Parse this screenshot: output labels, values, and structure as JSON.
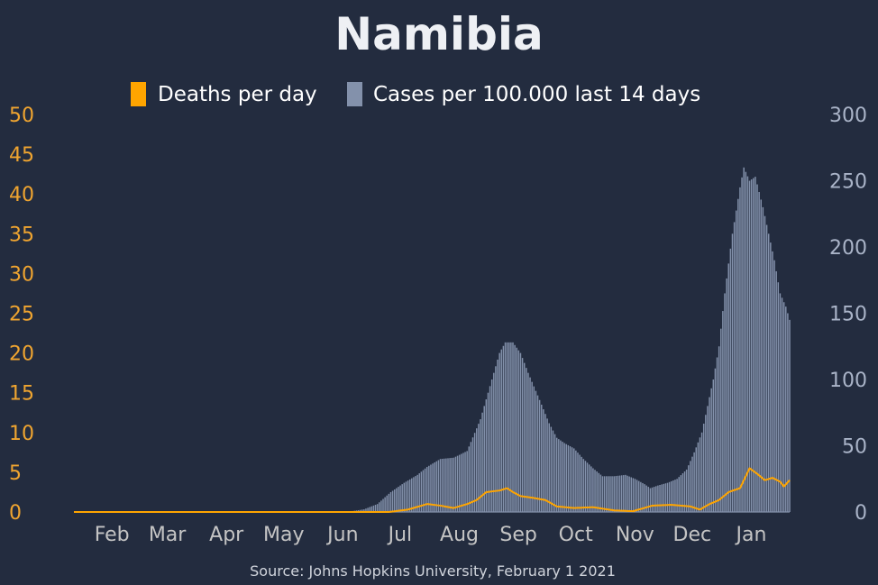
{
  "chart_data": {
    "type": "bar+line",
    "title": "Namibia",
    "source": "Source: Johns Hopkins University, February 1 2021",
    "legend": [
      {
        "label": "Deaths per day",
        "color": "#ffa500"
      },
      {
        "label": "Cases per 100.000 last 14 days",
        "color": "#8391ab"
      }
    ],
    "colors": {
      "background": "#232c3f",
      "deaths": "#ffa500",
      "cases": "#8391ab",
      "left_axis": "#f0a530",
      "right_axis": "#aab4c8",
      "x_axis": "#c4c4c4",
      "title": "#eef0f4"
    },
    "x_start_date": "2020-01-22",
    "x_end_date": "2021-01-31",
    "x_ticks": [
      "Feb",
      "Mar",
      "Apr",
      "May",
      "Jun",
      "Jul",
      "Aug",
      "Sep",
      "Oct",
      "Nov",
      "Dec",
      "Jan"
    ],
    "x_tick_dates": [
      "2020-02-01",
      "2020-03-01",
      "2020-04-01",
      "2020-05-01",
      "2020-06-01",
      "2020-07-01",
      "2020-08-01",
      "2020-09-01",
      "2020-10-01",
      "2020-11-01",
      "2020-12-01",
      "2021-01-01"
    ],
    "left_axis": {
      "label": "Deaths per day",
      "ylim": [
        0,
        50
      ],
      "ticks": [
        "0",
        "5",
        "10",
        "15",
        "20",
        "25",
        "30",
        "35",
        "40",
        "45",
        "50"
      ]
    },
    "right_axis": {
      "label": "Cases per 100.000 last 14 days",
      "ylim": [
        0,
        300
      ],
      "ticks": [
        "0",
        "50",
        "100",
        "150",
        "200",
        "250",
        "300"
      ]
    },
    "cases_keypoints": [
      [
        "2020-01-22",
        0
      ],
      [
        "2020-06-08",
        0
      ],
      [
        "2020-06-15",
        0.5
      ],
      [
        "2020-06-22",
        2
      ],
      [
        "2020-06-29",
        6
      ],
      [
        "2020-07-06",
        15
      ],
      [
        "2020-07-13",
        22
      ],
      [
        "2020-07-20",
        28
      ],
      [
        "2020-07-25",
        34
      ],
      [
        "2020-08-01",
        40
      ],
      [
        "2020-08-08",
        41
      ],
      [
        "2020-08-15",
        46
      ],
      [
        "2020-08-22",
        70
      ],
      [
        "2020-08-27",
        95
      ],
      [
        "2020-09-01",
        120
      ],
      [
        "2020-09-04",
        128
      ],
      [
        "2020-09-08",
        128
      ],
      [
        "2020-09-12",
        120
      ],
      [
        "2020-09-16",
        105
      ],
      [
        "2020-09-21",
        88
      ],
      [
        "2020-09-27",
        67
      ],
      [
        "2020-10-01",
        56
      ],
      [
        "2020-10-05",
        52
      ],
      [
        "2020-10-10",
        48
      ],
      [
        "2020-10-15",
        40
      ],
      [
        "2020-10-20",
        33
      ],
      [
        "2020-10-25",
        27
      ],
      [
        "2020-10-31",
        27
      ],
      [
        "2020-11-06",
        28
      ],
      [
        "2020-11-11",
        25
      ],
      [
        "2020-11-16",
        21
      ],
      [
        "2020-11-19",
        18
      ],
      [
        "2020-11-23",
        20
      ],
      [
        "2020-11-28",
        22
      ],
      [
        "2020-12-03",
        25
      ],
      [
        "2020-12-08",
        32
      ],
      [
        "2020-12-12",
        45
      ],
      [
        "2020-12-16",
        60
      ],
      [
        "2020-12-19",
        80
      ],
      [
        "2020-12-22",
        100
      ],
      [
        "2020-12-25",
        125
      ],
      [
        "2020-12-28",
        165
      ],
      [
        "2021-01-01",
        210
      ],
      [
        "2021-01-05",
        245
      ],
      [
        "2021-01-07",
        260
      ],
      [
        "2021-01-10",
        250
      ],
      [
        "2021-01-13",
        253
      ],
      [
        "2021-01-17",
        230
      ],
      [
        "2021-01-20",
        210
      ],
      [
        "2021-01-23",
        190
      ],
      [
        "2021-01-26",
        165
      ],
      [
        "2021-01-29",
        155
      ],
      [
        "2021-01-31",
        145
      ]
    ],
    "deaths_keypoints": [
      [
        "2020-01-22",
        0
      ],
      [
        "2020-07-05",
        0
      ],
      [
        "2020-07-15",
        0.3
      ],
      [
        "2020-07-25",
        1
      ],
      [
        "2020-08-01",
        0.8
      ],
      [
        "2020-08-08",
        0.5
      ],
      [
        "2020-08-15",
        1
      ],
      [
        "2020-08-20",
        1.5
      ],
      [
        "2020-08-25",
        2.5
      ],
      [
        "2020-09-01",
        2.7
      ],
      [
        "2020-09-05",
        3
      ],
      [
        "2020-09-08",
        2.5
      ],
      [
        "2020-09-12",
        2
      ],
      [
        "2020-09-18",
        1.8
      ],
      [
        "2020-09-25",
        1.5
      ],
      [
        "2020-10-01",
        0.7
      ],
      [
        "2020-10-10",
        0.5
      ],
      [
        "2020-10-20",
        0.6
      ],
      [
        "2020-10-31",
        0.2
      ],
      [
        "2020-11-10",
        0.1
      ],
      [
        "2020-11-20",
        0.8
      ],
      [
        "2020-11-30",
        0.9
      ],
      [
        "2020-12-10",
        0.7
      ],
      [
        "2020-12-15",
        0.3
      ],
      [
        "2020-12-20",
        1
      ],
      [
        "2020-12-25",
        1.5
      ],
      [
        "2020-12-30",
        2.5
      ],
      [
        "2021-01-05",
        3
      ],
      [
        "2021-01-10",
        5.5
      ],
      [
        "2021-01-14",
        4.8
      ],
      [
        "2021-01-18",
        4
      ],
      [
        "2021-01-22",
        4.3
      ],
      [
        "2021-01-26",
        3.8
      ],
      [
        "2021-01-28",
        3.2
      ],
      [
        "2021-01-31",
        4
      ]
    ]
  }
}
